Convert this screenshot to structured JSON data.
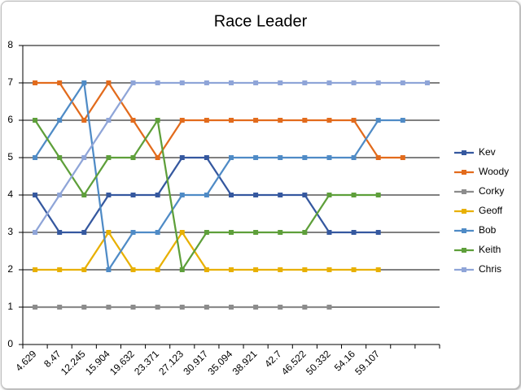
{
  "chart_data": {
    "type": "line",
    "title": "Race Leader",
    "categories": [
      "4.629",
      "8.47",
      "12.245",
      "15.904",
      "19.632",
      "23.371",
      "27.123",
      "30.917",
      "35.094",
      "38.921",
      "42.7",
      "46.522",
      "50.332",
      "54.16",
      "59.107",
      null,
      null
    ],
    "series": [
      {
        "name": "Kev",
        "color": "#35589f",
        "values": [
          4,
          3,
          3,
          4,
          4,
          4,
          5,
          5,
          4,
          4,
          4,
          4,
          3,
          3,
          3,
          null,
          null
        ]
      },
      {
        "name": "Woody",
        "color": "#e26b1c",
        "values": [
          7,
          7,
          6,
          7,
          6,
          5,
          6,
          6,
          6,
          6,
          6,
          6,
          6,
          6,
          5,
          5,
          null
        ]
      },
      {
        "name": "Corky",
        "color": "#8c8c8c",
        "values": [
          1,
          1,
          1,
          1,
          1,
          1,
          1,
          1,
          1,
          1,
          1,
          1,
          1,
          null,
          null,
          null,
          null
        ]
      },
      {
        "name": "Geoff",
        "color": "#e8b000",
        "values": [
          2,
          2,
          2,
          3,
          2,
          2,
          3,
          2,
          2,
          2,
          2,
          2,
          2,
          2,
          2,
          null,
          null
        ]
      },
      {
        "name": "Bob",
        "color": "#4f8bc6",
        "values": [
          5,
          6,
          7,
          2,
          3,
          3,
          4,
          4,
          5,
          5,
          5,
          5,
          5,
          5,
          6,
          6,
          null
        ]
      },
      {
        "name": "Keith",
        "color": "#5e9f3a",
        "values": [
          6,
          5,
          4,
          5,
          5,
          6,
          2,
          3,
          3,
          3,
          3,
          3,
          4,
          4,
          4,
          null,
          null
        ]
      },
      {
        "name": "Chris",
        "color": "#8fa5d8",
        "values": [
          3,
          4,
          5,
          6,
          7,
          7,
          7,
          7,
          7,
          7,
          7,
          7,
          7,
          7,
          7,
          7,
          7
        ]
      }
    ],
    "ylim": [
      0,
      8
    ],
    "yticks": [
      0,
      1,
      2,
      3,
      4,
      5,
      6,
      7,
      8
    ],
    "grid": true,
    "legend": "right"
  }
}
